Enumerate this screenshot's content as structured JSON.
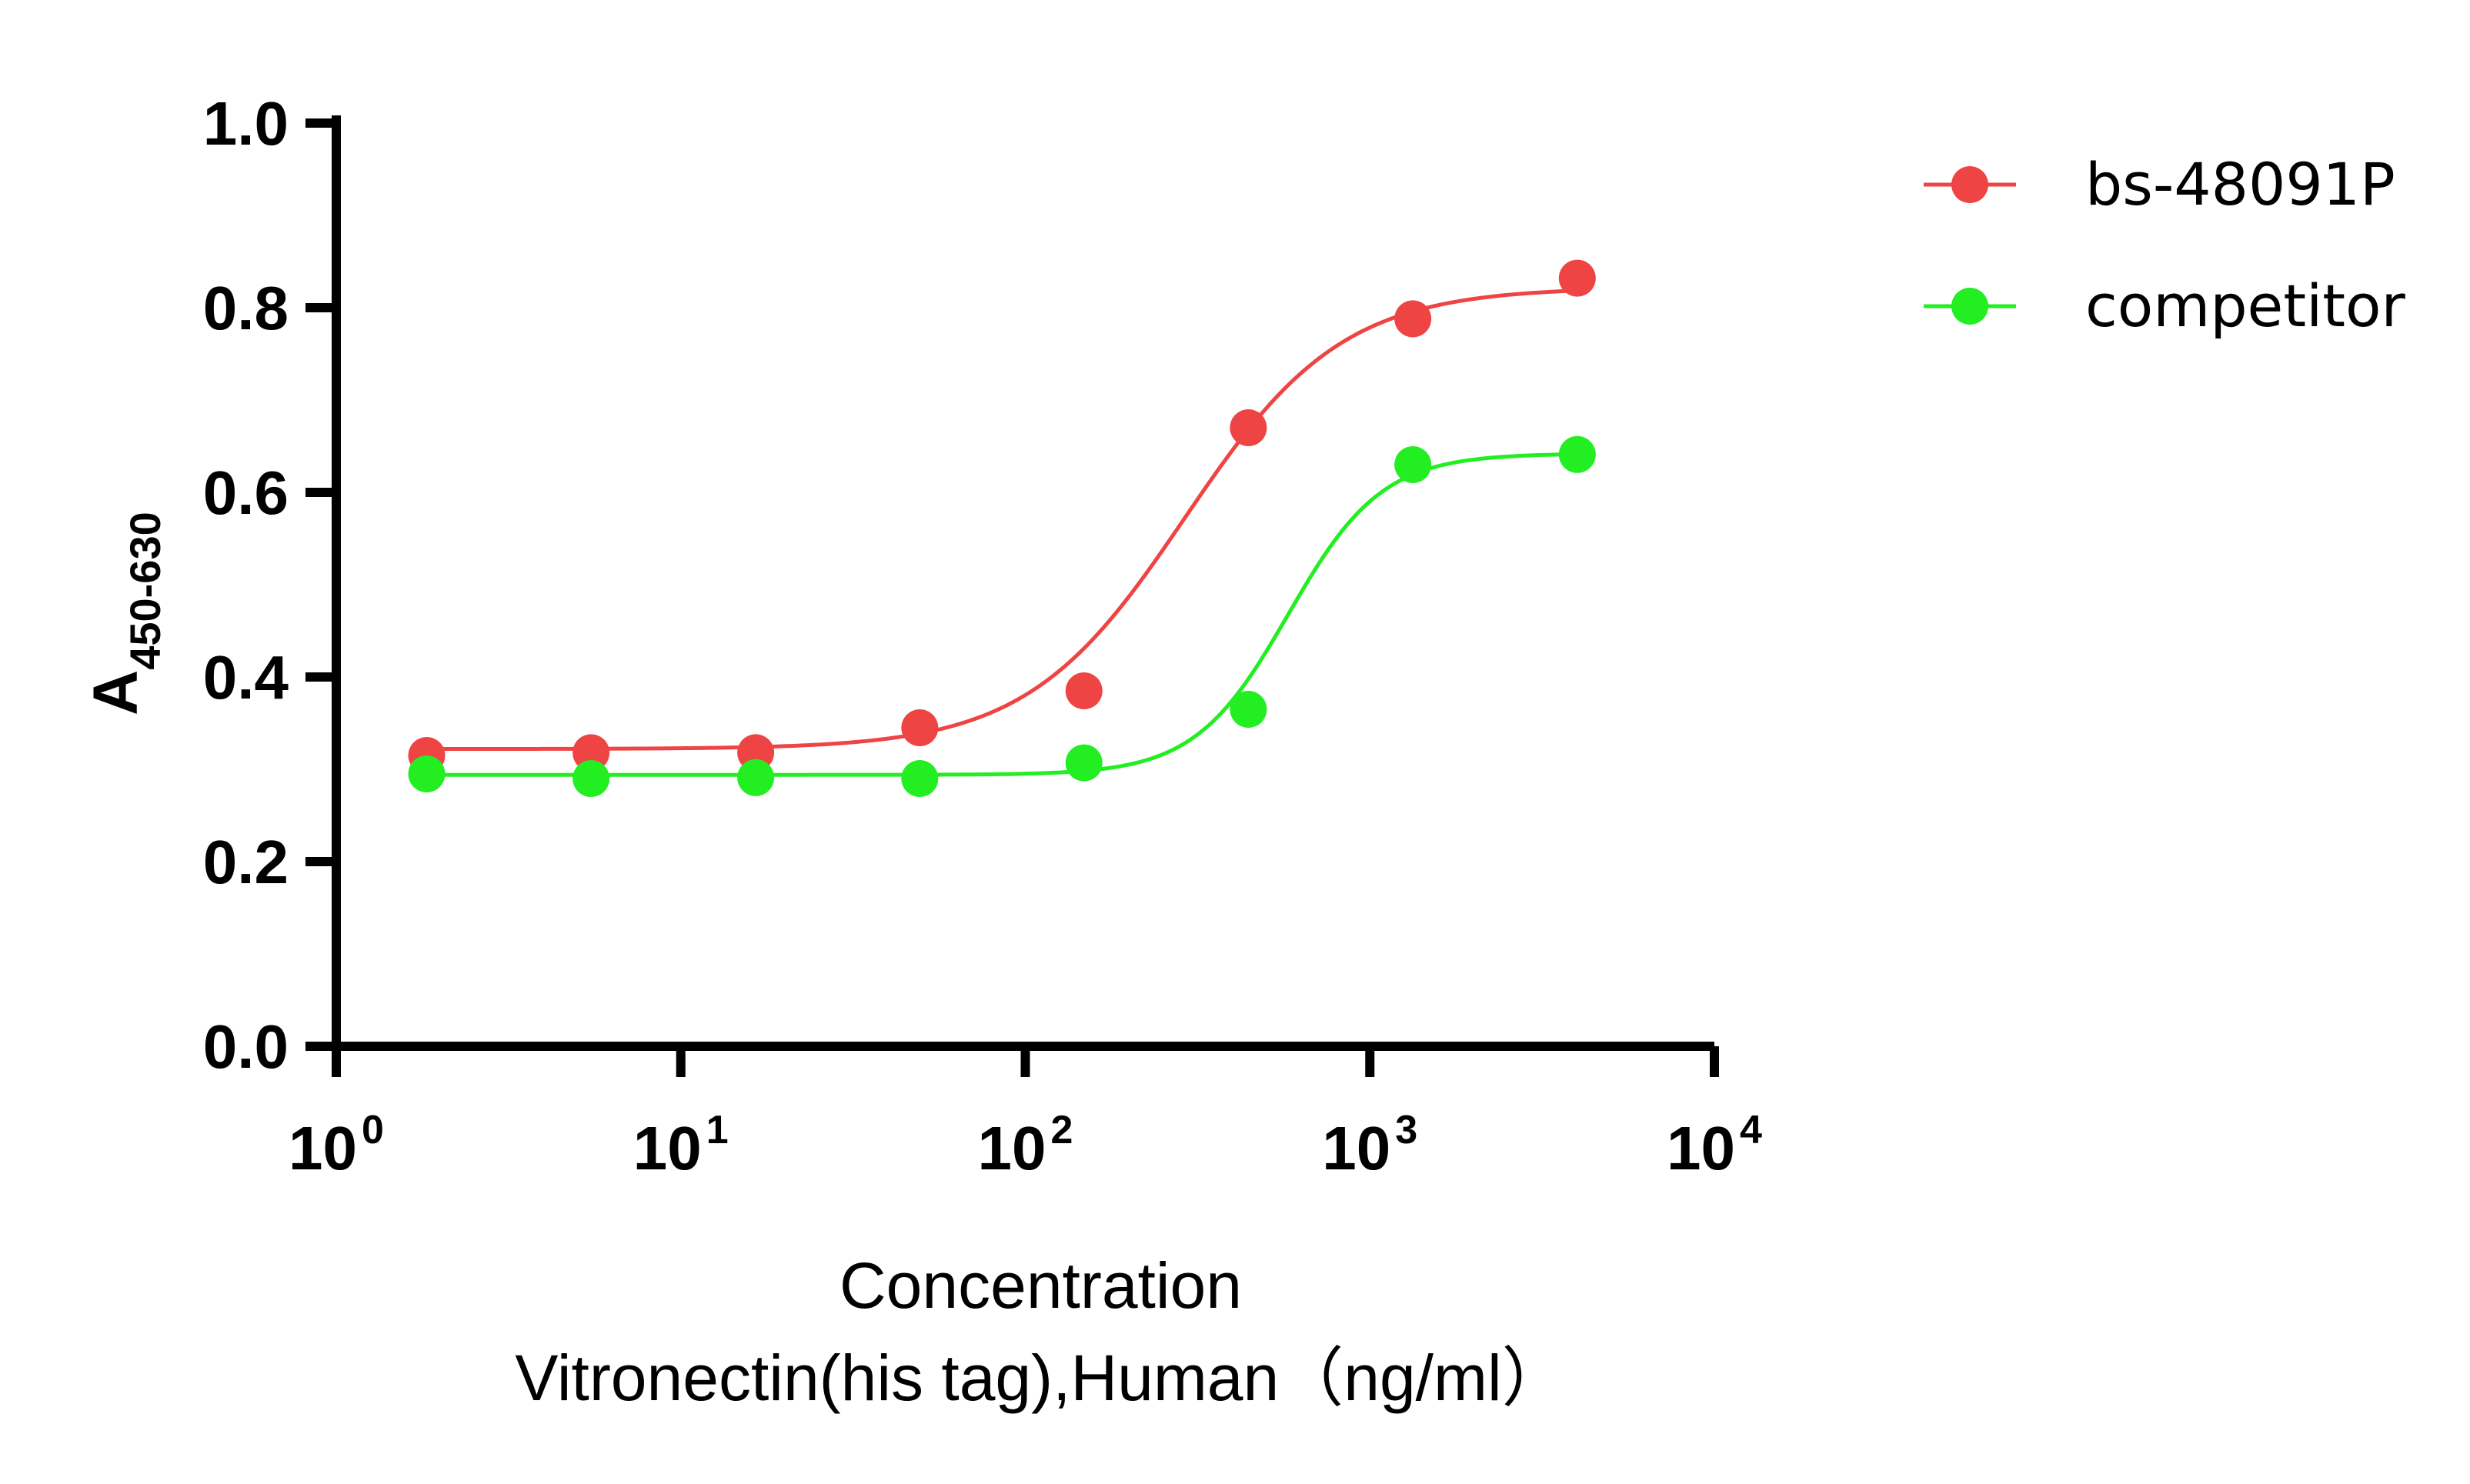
{
  "chart_data": {
    "type": "scatter",
    "x_scale": "log",
    "xlim": [
      1,
      10000
    ],
    "ylim": [
      0,
      1.0
    ],
    "x_ticks": [
      {
        "base": "10",
        "exp": "0",
        "value": 1
      },
      {
        "base": "10",
        "exp": "1",
        "value": 10
      },
      {
        "base": "10",
        "exp": "2",
        "value": 100
      },
      {
        "base": "10",
        "exp": "3",
        "value": 1000
      },
      {
        "base": "10",
        "exp": "4",
        "value": 10000
      }
    ],
    "y_ticks": [
      "0.0",
      "0.2",
      "0.4",
      "0.6",
      "0.8",
      "1.0"
    ],
    "ylabel": {
      "main": "A",
      "sub": "450-630"
    },
    "xlabel": [
      "Concentration",
      "Vitronectin(his tag),Human（ng/ml）"
    ],
    "grid": false,
    "legend_position": "top-right",
    "series": [
      {
        "name": "bs-48091P",
        "color": "#ef4444",
        "x": [
          1.83,
          5.49,
          16.5,
          49.4,
          148,
          444,
          1333,
          4000
        ],
        "y": [
          0.315,
          0.318,
          0.318,
          0.345,
          0.385,
          0.67,
          0.788,
          0.832
        ],
        "fit": {
          "bottom": 0.322,
          "top": 0.822,
          "ec50": 290,
          "hill": 1.9
        }
      },
      {
        "name": "competitor",
        "color": "#22ee22",
        "x": [
          1.83,
          5.49,
          16.5,
          49.4,
          148,
          444,
          1333,
          4000
        ],
        "y": [
          0.295,
          0.29,
          0.291,
          0.29,
          0.307,
          0.365,
          0.63,
          0.641
        ],
        "fit": {
          "bottom": 0.294,
          "top": 0.642,
          "ec50": 580,
          "hill": 3.2
        }
      }
    ]
  }
}
